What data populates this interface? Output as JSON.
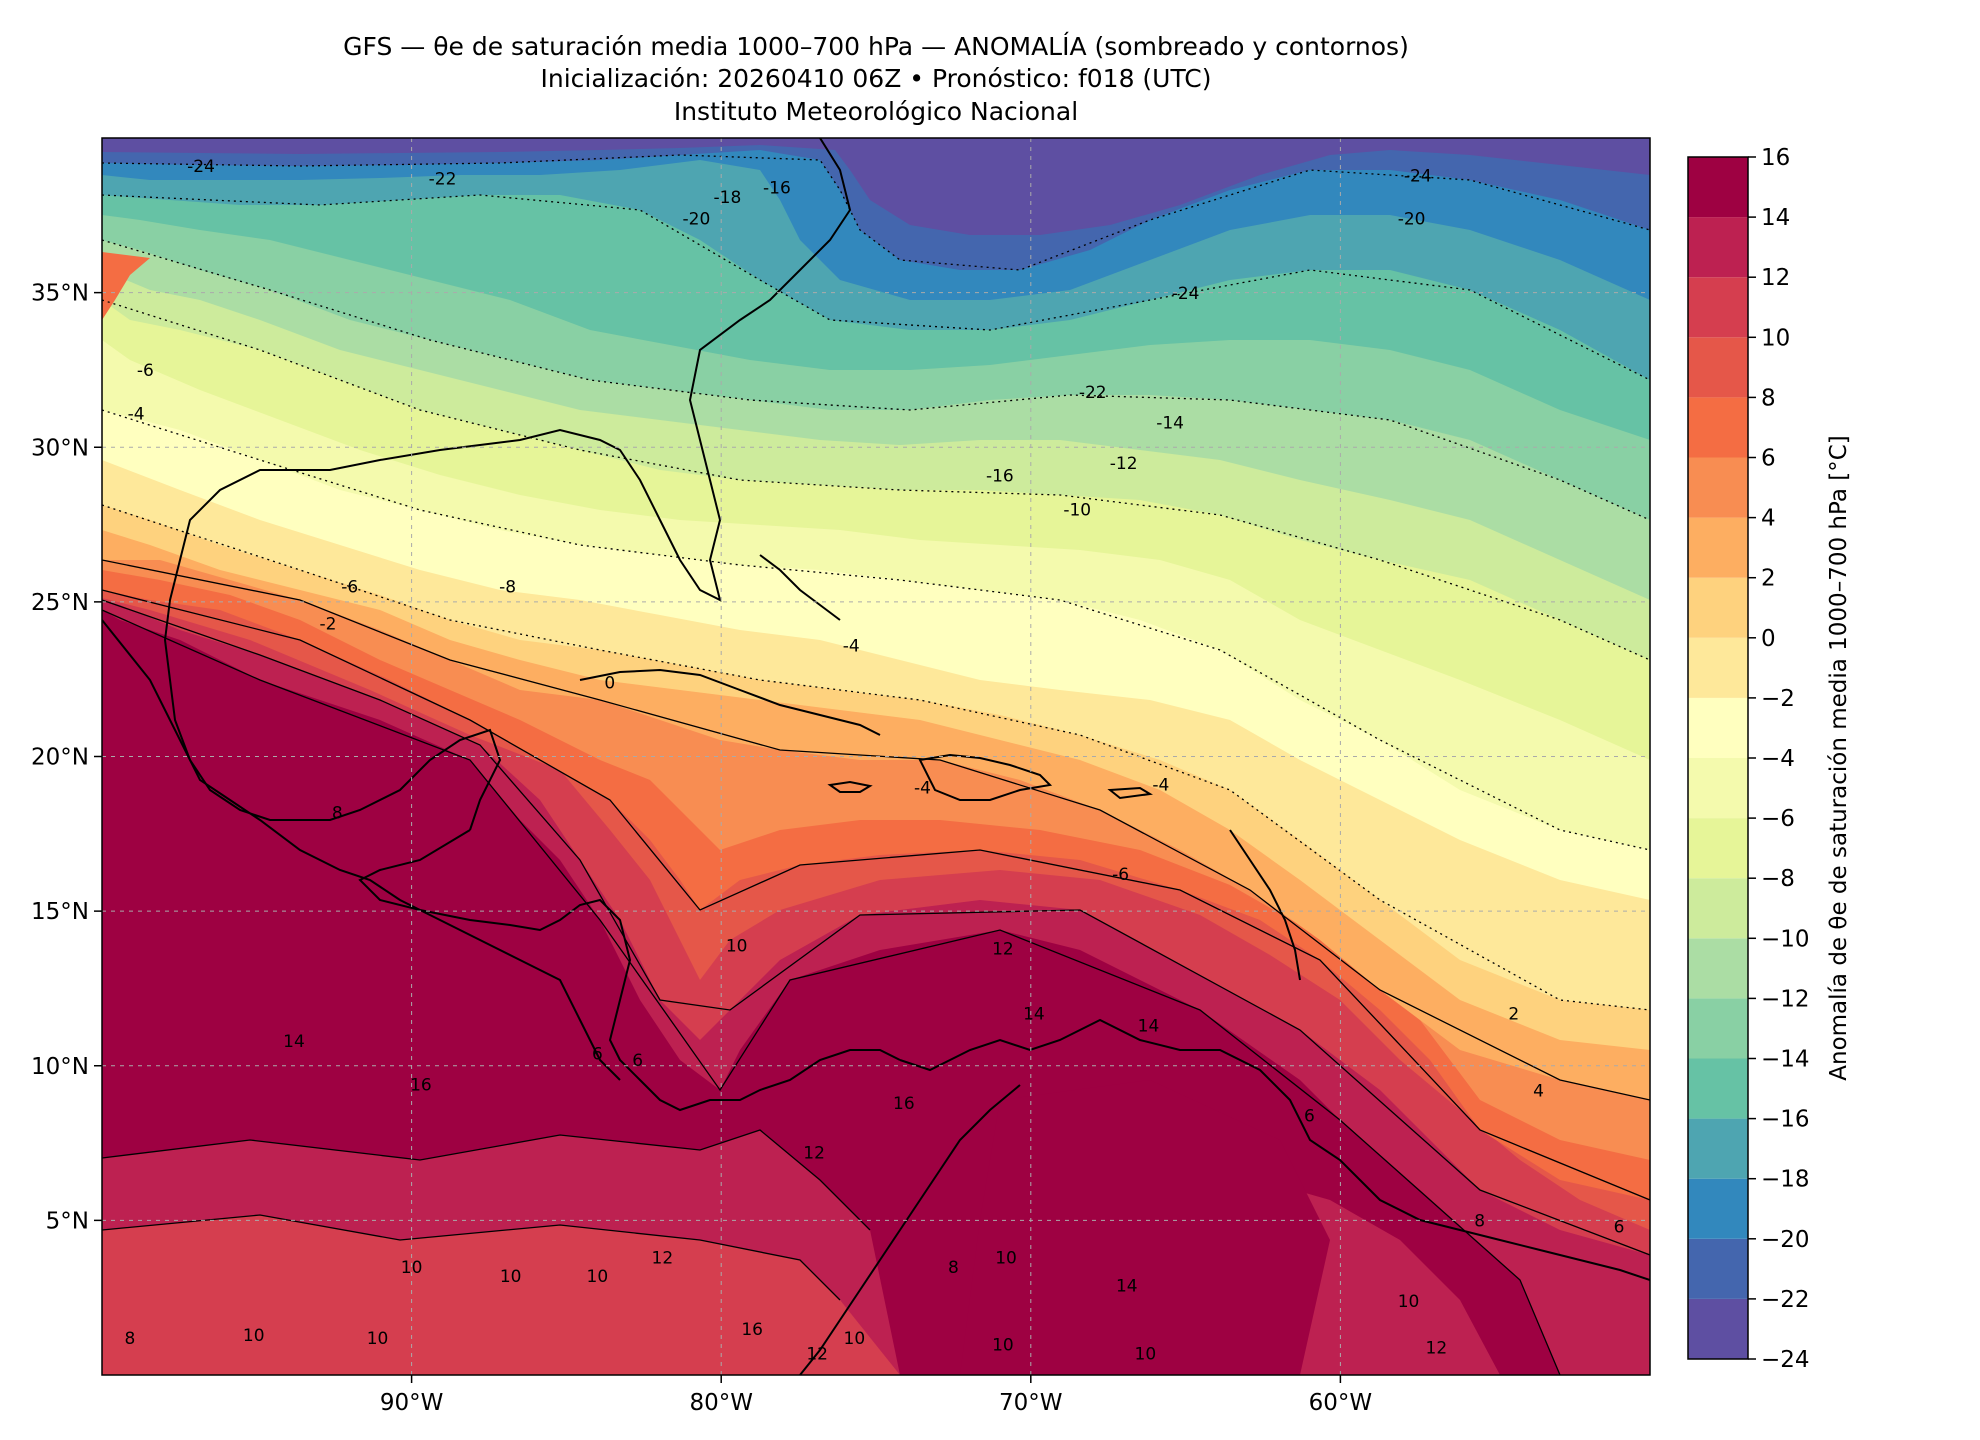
{
  "title": {
    "line1": "GFS — θe de saturación media 1000–700 hPa — ANOMALÍA (sombreado y contornos)",
    "line2": "Inicialización: 20260410 06Z   •   Pronóstico: f018 (UTC)",
    "line3": "Instituto Meteorológico Nacional"
  },
  "map": {
    "lon_range": [
      -100,
      -50
    ],
    "lat_range": [
      0,
      40
    ],
    "lon_ticks": [
      {
        "value": -90,
        "label": "90°W"
      },
      {
        "value": -80,
        "label": "80°W"
      },
      {
        "value": -70,
        "label": "70°W"
      },
      {
        "value": -60,
        "label": "60°W"
      }
    ],
    "lat_ticks": [
      {
        "value": 35,
        "label": "35°N"
      },
      {
        "value": 30,
        "label": "30°N"
      },
      {
        "value": 25,
        "label": "25°N"
      },
      {
        "value": 20,
        "label": "20°N"
      },
      {
        "value": 15,
        "label": "15°N"
      },
      {
        "value": 10,
        "label": "10°N"
      },
      {
        "value": 5,
        "label": "5°N"
      }
    ],
    "gridlines": true,
    "contour_labels": [
      {
        "text": "-24",
        "lon": -96.8,
        "lat": 38.9
      },
      {
        "text": "-22",
        "lon": -89.0,
        "lat": 38.5
      },
      {
        "text": "-20",
        "lon": -80.8,
        "lat": 37.2
      },
      {
        "text": "-18",
        "lon": -79.8,
        "lat": 37.9
      },
      {
        "text": "-16",
        "lon": -78.2,
        "lat": 38.2
      },
      {
        "text": "-24",
        "lon": -57.5,
        "lat": 38.6
      },
      {
        "text": "-20",
        "lon": -57.7,
        "lat": 37.2
      },
      {
        "text": "-24",
        "lon": -65.0,
        "lat": 34.8
      },
      {
        "text": "-22",
        "lon": -68.0,
        "lat": 31.6
      },
      {
        "text": "-14",
        "lon": -65.5,
        "lat": 30.6
      },
      {
        "text": "-16",
        "lon": -71.0,
        "lat": 28.9
      },
      {
        "text": "-12",
        "lon": -67.0,
        "lat": 29.3
      },
      {
        "text": "-10",
        "lon": -68.5,
        "lat": 27.8
      },
      {
        "text": "-6",
        "lon": -98.6,
        "lat": 32.3
      },
      {
        "text": "-4",
        "lon": -98.9,
        "lat": 30.9
      },
      {
        "text": "-6",
        "lon": -92.0,
        "lat": 25.3
      },
      {
        "text": "-8",
        "lon": -86.9,
        "lat": 25.3
      },
      {
        "text": "-2",
        "lon": -92.7,
        "lat": 24.1
      },
      {
        "text": "-4",
        "lon": -75.8,
        "lat": 23.4
      },
      {
        "text": "0",
        "lon": -83.6,
        "lat": 22.2
      },
      {
        "text": "-4",
        "lon": -73.5,
        "lat": 18.8
      },
      {
        "text": "-4",
        "lon": -65.8,
        "lat": 18.9
      },
      {
        "text": "-6",
        "lon": -67.1,
        "lat": 16.0
      },
      {
        "text": "8",
        "lon": -92.4,
        "lat": 18.0
      },
      {
        "text": "10",
        "lon": -79.5,
        "lat": 13.7
      },
      {
        "text": "12",
        "lon": -70.9,
        "lat": 13.6
      },
      {
        "text": "14",
        "lon": -69.9,
        "lat": 11.5
      },
      {
        "text": "14",
        "lon": -66.2,
        "lat": 11.1
      },
      {
        "text": "2",
        "lon": -54.4,
        "lat": 11.5
      },
      {
        "text": "4",
        "lon": -53.6,
        "lat": 9.0
      },
      {
        "text": "6",
        "lon": -61.0,
        "lat": 8.2
      },
      {
        "text": "14",
        "lon": -93.8,
        "lat": 10.6
      },
      {
        "text": "16",
        "lon": -89.7,
        "lat": 9.2
      },
      {
        "text": "6",
        "lon": -84.0,
        "lat": 10.2
      },
      {
        "text": "6",
        "lon": -82.7,
        "lat": 10.0
      },
      {
        "text": "16",
        "lon": -74.1,
        "lat": 8.6
      },
      {
        "text": "12",
        "lon": -77.0,
        "lat": 7.0
      },
      {
        "text": "8",
        "lon": -55.5,
        "lat": 4.8
      },
      {
        "text": "6",
        "lon": -51.0,
        "lat": 4.6
      },
      {
        "text": "10",
        "lon": -90.0,
        "lat": 3.3
      },
      {
        "text": "10",
        "lon": -86.8,
        "lat": 3.0
      },
      {
        "text": "10",
        "lon": -84.0,
        "lat": 3.0
      },
      {
        "text": "12",
        "lon": -81.9,
        "lat": 3.6
      },
      {
        "text": "10",
        "lon": -70.8,
        "lat": 3.6
      },
      {
        "text": "8",
        "lon": -72.5,
        "lat": 3.3
      },
      {
        "text": "14",
        "lon": -66.9,
        "lat": 2.7
      },
      {
        "text": "10",
        "lon": -57.8,
        "lat": 2.2
      },
      {
        "text": "8",
        "lon": -99.1,
        "lat": 1.0
      },
      {
        "text": "10",
        "lon": -95.1,
        "lat": 1.1
      },
      {
        "text": "10",
        "lon": -91.1,
        "lat": 1.0
      },
      {
        "text": "12",
        "lon": -76.9,
        "lat": 0.5
      },
      {
        "text": "10",
        "lon": -75.7,
        "lat": 1.0
      },
      {
        "text": "10",
        "lon": -70.9,
        "lat": 0.8
      },
      {
        "text": "10",
        "lon": -66.3,
        "lat": 0.5
      },
      {
        "text": "12",
        "lon": -56.9,
        "lat": 0.7
      },
      {
        "text": "16",
        "lon": -79.0,
        "lat": 1.3
      }
    ]
  },
  "colorbar": {
    "label": "Anomalía de θe de saturación media 1000–700 hPa [°C]",
    "range": [
      -24,
      16
    ],
    "step": 2,
    "tick_values": [
      16,
      14,
      12,
      10,
      8,
      6,
      4,
      2,
      0,
      -2,
      -4,
      -6,
      -8,
      -10,
      -12,
      -14,
      -16,
      -18,
      -20,
      -22,
      -24
    ],
    "tick_labels": [
      "16",
      "14",
      "12",
      "10",
      "8",
      "6",
      "4",
      "2",
      "0",
      "−2",
      "−4",
      "−6",
      "−8",
      "−10",
      "−12",
      "−14",
      "−16",
      "−18",
      "−20",
      "−22",
      "−24"
    ],
    "colors": [
      "#5e4fa2",
      "#4466ae",
      "#3288bd",
      "#4ea5b1",
      "#66c2a5",
      "#89d0a4",
      "#abdda4",
      "#cdeb9c",
      "#e6f598",
      "#f4faad",
      "#ffffbf",
      "#fee89a",
      "#fed27e",
      "#fdae61",
      "#f88d52",
      "#f46d43",
      "#e55749",
      "#d53e4f",
      "#bd2151",
      "#9e0142"
    ]
  }
}
